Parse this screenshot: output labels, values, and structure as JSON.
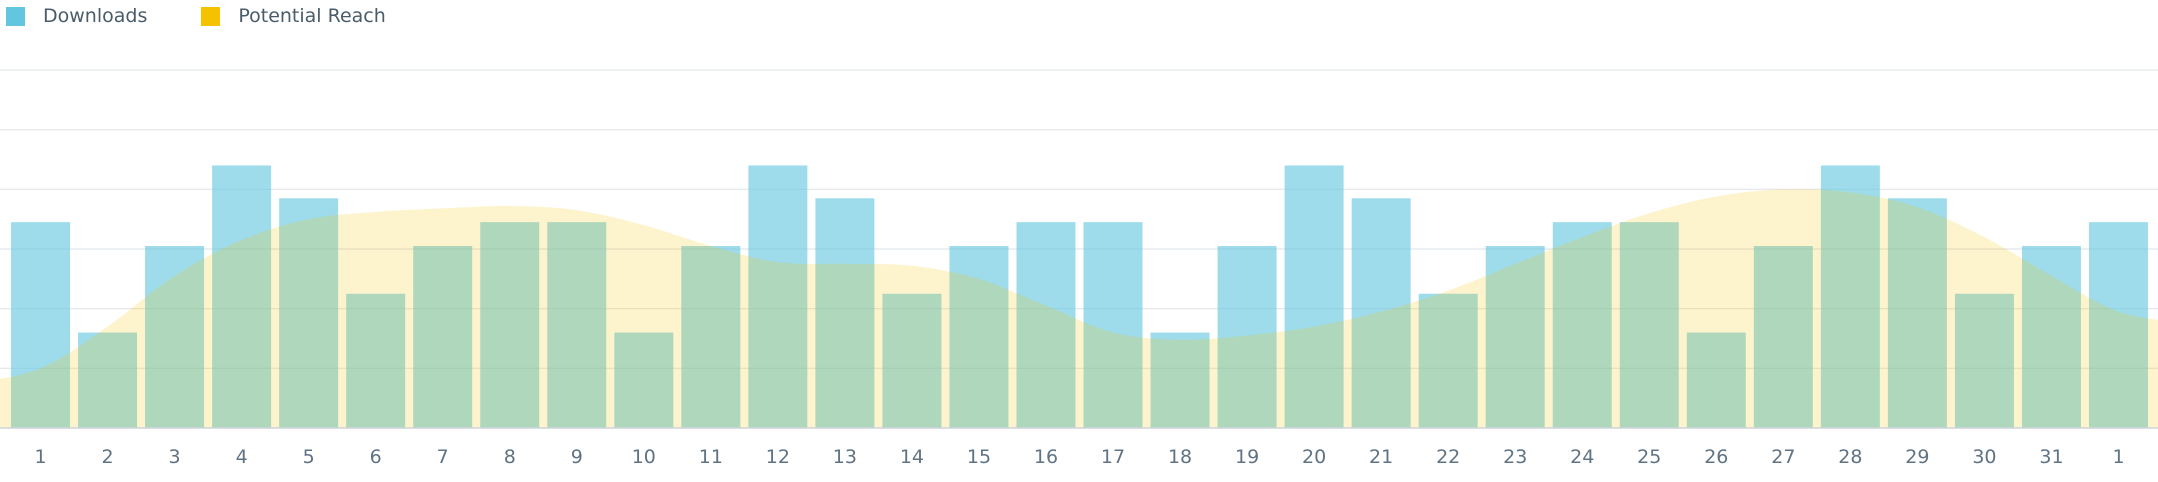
{
  "chart_data": {
    "type": "bar",
    "legend_position": "top-left",
    "grid": true,
    "ylim": [
      0,
      6
    ],
    "categories": [
      "1",
      "2",
      "3",
      "4",
      "5",
      "6",
      "7",
      "8",
      "9",
      "10",
      "11",
      "12",
      "13",
      "14",
      "15",
      "16",
      "17",
      "18",
      "19",
      "20",
      "21",
      "22",
      "23",
      "24",
      "25",
      "26",
      "27",
      "28",
      "29",
      "30",
      "31",
      "1"
    ],
    "series": [
      {
        "name": "Downloads",
        "type": "bar",
        "color": "#62c6df",
        "values": [
          3.45,
          1.6,
          3.05,
          4.4,
          3.85,
          2.25,
          3.05,
          3.45,
          3.45,
          1.6,
          3.05,
          4.4,
          3.85,
          2.25,
          3.05,
          3.45,
          3.45,
          1.6,
          3.05,
          4.4,
          3.85,
          2.25,
          3.05,
          3.45,
          3.45,
          1.6,
          3.05,
          4.4,
          3.85,
          2.25,
          3.05,
          3.45
        ]
      },
      {
        "name": "Potential Reach",
        "type": "area",
        "color": "#f5c200",
        "values": [
          1.0,
          1.7,
          2.55,
          3.15,
          3.5,
          3.62,
          3.68,
          3.72,
          3.65,
          3.4,
          3.05,
          2.78,
          2.75,
          2.72,
          2.5,
          2.05,
          1.6,
          1.48,
          1.55,
          1.7,
          1.95,
          2.3,
          2.75,
          3.2,
          3.6,
          3.88,
          4.0,
          3.95,
          3.7,
          3.2,
          2.55,
          1.95
        ]
      }
    ]
  },
  "legend": [
    {
      "label": "Downloads",
      "color": "#62c6df"
    },
    {
      "label": "Potential Reach",
      "color": "#f5c200"
    }
  ]
}
